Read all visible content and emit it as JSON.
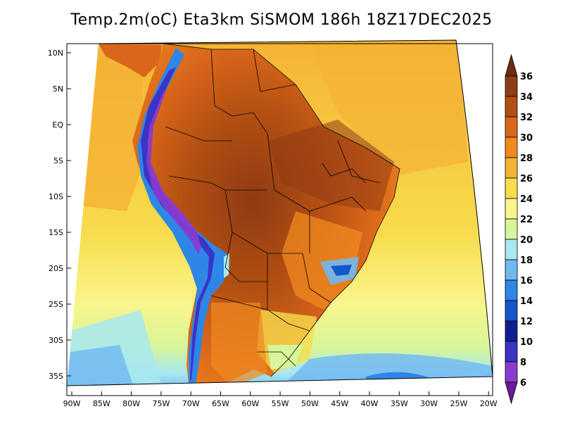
{
  "title": "Temp.2m(oC) Eta3km SiSMOM 186h 18Z17DEC2025",
  "map": {
    "lat_ticks": [
      "10N",
      "5N",
      "EQ",
      "5S",
      "10S",
      "15S",
      "20S",
      "25S",
      "30S",
      "35S"
    ],
    "lon_ticks": [
      "90W",
      "85W",
      "80W",
      "75W",
      "70W",
      "65W",
      "60W",
      "55W",
      "50W",
      "45W",
      "40W",
      "35W",
      "30W",
      "25W",
      "20W"
    ]
  },
  "colorbar": {
    "labels": [
      "36",
      "34",
      "32",
      "30",
      "28",
      "26",
      "24",
      "22",
      "20",
      "18",
      "16",
      "14",
      "12",
      "10",
      "8",
      "6"
    ],
    "colors": [
      "#6e2b12",
      "#8f3b14",
      "#b24f12",
      "#d9661a",
      "#f08a1f",
      "#f5b234",
      "#f7dc4c",
      "#f9f58c",
      "#d7f59a",
      "#a8e8f0",
      "#6fb8f2",
      "#2e86e6",
      "#1357c9",
      "#0d1f8f",
      "#3b35c6",
      "#8a3bd0",
      "#6a1a9a"
    ]
  }
}
